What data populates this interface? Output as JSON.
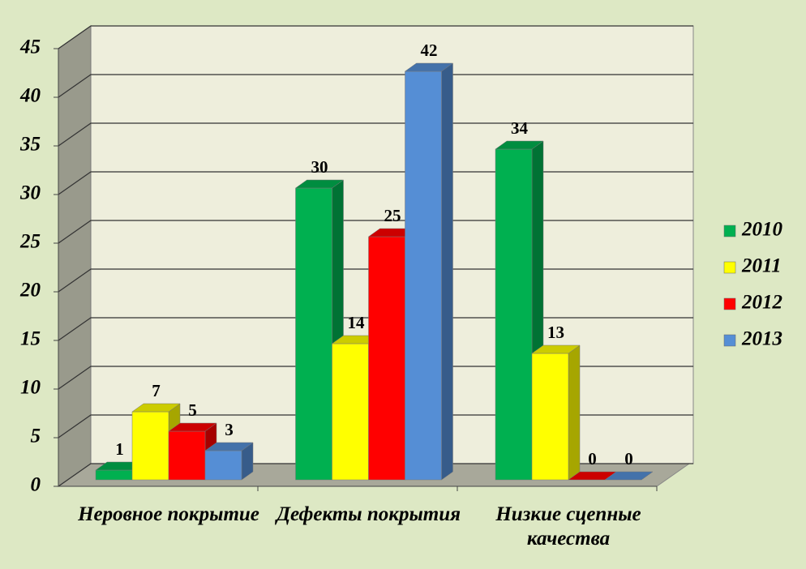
{
  "chart_data": {
    "type": "bar3d",
    "categories": [
      "Неровное покрытие",
      "Дефекты покрытия",
      "Низкие сцепные качества"
    ],
    "series": [
      {
        "name": "2010",
        "color": "#00b050",
        "values": [
          1,
          30,
          34
        ]
      },
      {
        "name": "2011",
        "color": "#ffff00",
        "values": [
          7,
          14,
          13
        ]
      },
      {
        "name": "2012",
        "color": "#ff0000",
        "values": [
          5,
          25,
          0
        ]
      },
      {
        "name": "2013",
        "color": "#558ed5",
        "values": [
          3,
          42,
          0
        ]
      }
    ],
    "ylim": [
      0,
      45
    ],
    "yticks": [
      0,
      5,
      10,
      15,
      20,
      25,
      30,
      35,
      40,
      45
    ],
    "grid": true,
    "legend": "right"
  }
}
